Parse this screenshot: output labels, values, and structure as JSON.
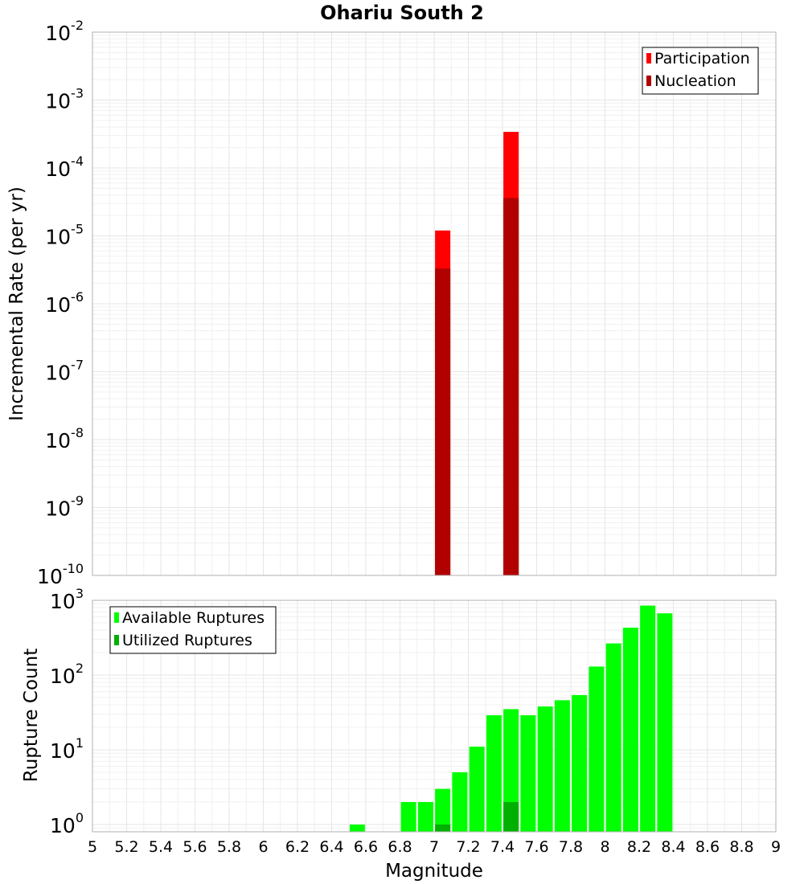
{
  "chart_data": [
    {
      "type": "bar",
      "panel": "rates",
      "title": "Ohariu South 2",
      "xlabel": "",
      "ylabel": "Incremental Rate (per yr)",
      "yscale": "log",
      "ylim": [
        1e-10,
        0.01
      ],
      "xlim": [
        5,
        9
      ],
      "grid": true,
      "legend_position": "top-right",
      "y_ticks": [
        {
          "base": "10",
          "exp": "-10",
          "value": 1e-10
        },
        {
          "base": "10",
          "exp": "-9",
          "value": 1e-09
        },
        {
          "base": "10",
          "exp": "-8",
          "value": 1e-08
        },
        {
          "base": "10",
          "exp": "-7",
          "value": 1e-07
        },
        {
          "base": "10",
          "exp": "-6",
          "value": 1e-06
        },
        {
          "base": "10",
          "exp": "-5",
          "value": 1e-05
        },
        {
          "base": "10",
          "exp": "-4",
          "value": 0.0001
        },
        {
          "base": "10",
          "exp": "-3",
          "value": 0.001
        },
        {
          "base": "10",
          "exp": "-2",
          "value": 0.01
        }
      ],
      "series": [
        {
          "name": "Participation",
          "color": "#ff0000",
          "points": [
            {
              "x": 7.05,
              "y": 1.2e-05
            },
            {
              "x": 7.45,
              "y": 0.00034
            }
          ]
        },
        {
          "name": "Nucleation",
          "color": "#b00000",
          "points": [
            {
              "x": 7.05,
              "y": 3.3e-06
            },
            {
              "x": 7.45,
              "y": 3.6e-05
            }
          ]
        }
      ]
    },
    {
      "type": "bar",
      "panel": "counts",
      "title": "",
      "xlabel": "Magnitude",
      "ylabel": "Rupture Count",
      "yscale": "log",
      "ylim": [
        0.8,
        1000
      ],
      "xlim": [
        5,
        9
      ],
      "grid": true,
      "legend_position": "top-left",
      "x_ticks": [
        "5",
        "5.2",
        "5.4",
        "5.6",
        "5.8",
        "6",
        "6.2",
        "6.4",
        "6.6",
        "6.8",
        "7",
        "7.2",
        "7.4",
        "7.6",
        "7.8",
        "8",
        "8.2",
        "8.4",
        "8.6",
        "8.8",
        "9"
      ],
      "y_ticks": [
        {
          "base": "10",
          "exp": "0",
          "value": 1
        },
        {
          "base": "10",
          "exp": "1",
          "value": 10
        },
        {
          "base": "10",
          "exp": "2",
          "value": 100
        },
        {
          "base": "10",
          "exp": "3",
          "value": 1000
        }
      ],
      "series": [
        {
          "name": "Available Ruptures",
          "color": "#00ff00",
          "points": [
            {
              "x": 6.55,
              "y": 1
            },
            {
              "x": 6.85,
              "y": 2
            },
            {
              "x": 6.95,
              "y": 2
            },
            {
              "x": 7.05,
              "y": 3
            },
            {
              "x": 7.15,
              "y": 5
            },
            {
              "x": 7.25,
              "y": 11
            },
            {
              "x": 7.35,
              "y": 29
            },
            {
              "x": 7.45,
              "y": 35
            },
            {
              "x": 7.55,
              "y": 29
            },
            {
              "x": 7.65,
              "y": 38
            },
            {
              "x": 7.75,
              "y": 46
            },
            {
              "x": 7.85,
              "y": 54
            },
            {
              "x": 7.95,
              "y": 130
            },
            {
              "x": 8.05,
              "y": 265
            },
            {
              "x": 8.15,
              "y": 430
            },
            {
              "x": 8.25,
              "y": 850
            },
            {
              "x": 8.35,
              "y": 670
            }
          ]
        },
        {
          "name": "Utilized Ruptures",
          "color": "#00b000",
          "points": [
            {
              "x": 7.05,
              "y": 1
            },
            {
              "x": 7.45,
              "y": 2
            }
          ]
        }
      ]
    }
  ]
}
